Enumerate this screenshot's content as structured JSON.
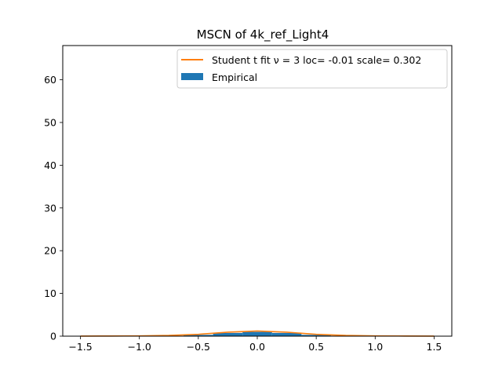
{
  "chart_data": {
    "type": "area",
    "title": "MSCN of 4k_ref_Light4",
    "xlabel": "",
    "ylabel": "",
    "xlim": [
      -1.65,
      1.65
    ],
    "ylim": [
      0,
      68
    ],
    "xticks": [
      -1.5,
      -1.0,
      -0.5,
      0.0,
      0.5,
      1.0,
      1.5
    ],
    "xtick_labels": [
      "−1.5",
      "−1.0",
      "−0.5",
      "0.0",
      "0.5",
      "1.0",
      "1.5"
    ],
    "yticks": [
      0,
      10,
      20,
      30,
      40,
      50,
      60
    ],
    "ytick_labels": [
      "0",
      "10",
      "20",
      "30",
      "40",
      "50",
      "60"
    ],
    "grid": false,
    "legend_position": "top-right",
    "series": [
      {
        "name": "Student t fit ν = 3 loc= -0.01 scale= 0.302",
        "kind": "line",
        "color": "#ff7f0e",
        "x": [
          -1.5,
          -1.25,
          -1.0,
          -0.75,
          -0.5,
          -0.25,
          0.0,
          0.25,
          0.5,
          0.75,
          1.0,
          1.25,
          1.5
        ],
        "y": [
          0.02,
          0.04,
          0.07,
          0.17,
          0.43,
          0.93,
          1.2,
          0.93,
          0.43,
          0.17,
          0.07,
          0.04,
          0.02
        ]
      },
      {
        "name": "Empirical",
        "kind": "histogram",
        "color": "#1f77b4",
        "x": [
          -1.5,
          -1.25,
          -1.0,
          -0.75,
          -0.5,
          -0.25,
          0.0,
          0.25,
          0.5,
          0.75,
          1.0,
          1.25,
          1.5
        ],
        "y": [
          0.0,
          0.01,
          0.03,
          0.1,
          0.3,
          0.75,
          1.0,
          0.75,
          0.3,
          0.1,
          0.03,
          0.01,
          0.0
        ]
      }
    ]
  }
}
